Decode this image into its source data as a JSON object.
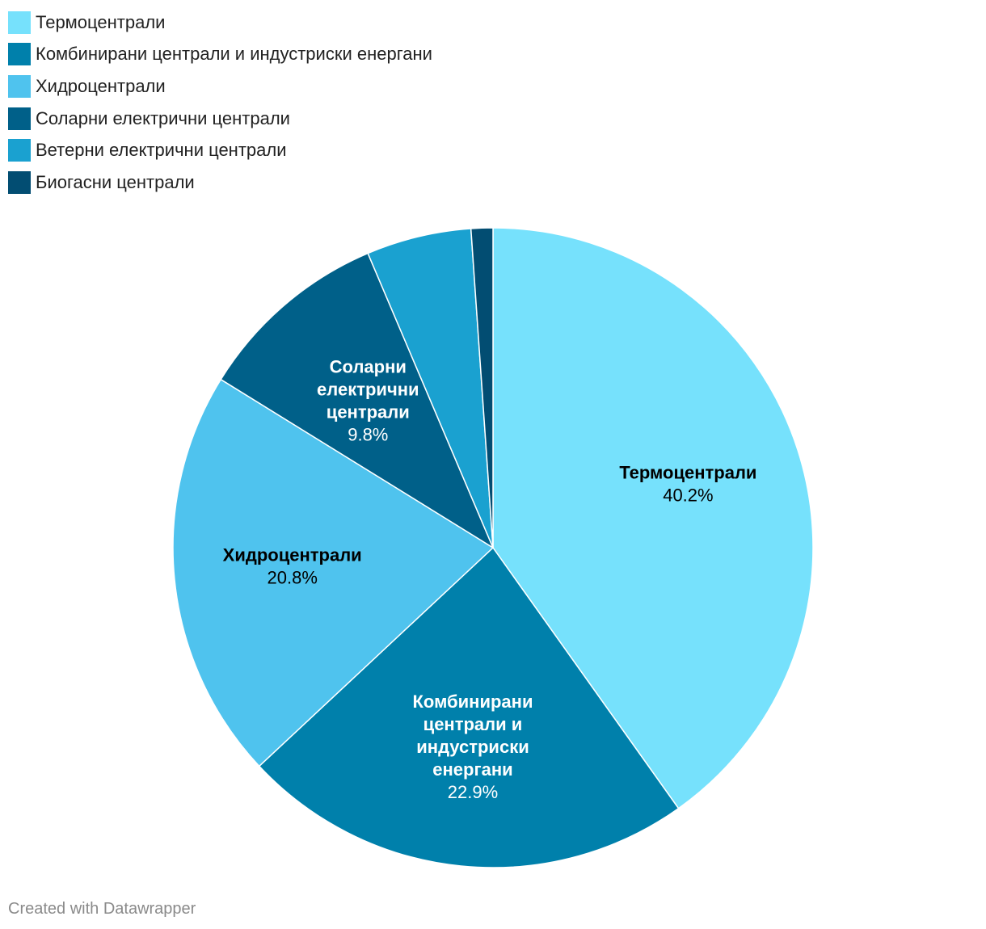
{
  "chart_data": {
    "type": "pie",
    "categories": [
      "Термоцентрали",
      "Комбинирани централи и индустриски енергани",
      "Хидроцентрали",
      "Соларни електрични централи",
      "Ветерни електрични централи",
      "Биогасни централи"
    ],
    "values": [
      40.2,
      22.9,
      20.8,
      9.8,
      5.3,
      1.1
    ],
    "colors": [
      "#76e1fc",
      "#0080ab",
      "#4fc3ee",
      "#006089",
      "#1aa1d0",
      "#024d72"
    ],
    "slice_labels": [
      {
        "lines": [
          "Термоцентрали"
        ],
        "value": "40.2%",
        "text_color": "#000000"
      },
      {
        "lines": [
          "Комбинирани",
          "централи и",
          "индустриски",
          "енергани"
        ],
        "value": "22.9%",
        "text_color": "#ffffff"
      },
      {
        "lines": [
          "Хидроцентрали"
        ],
        "value": "20.8%",
        "text_color": "#000000"
      },
      {
        "lines": [
          "Соларни",
          "електрични",
          "централи"
        ],
        "value": "9.8%",
        "text_color": "#ffffff"
      },
      null,
      null
    ],
    "legend_position": "top-left",
    "start_angle": "12 o'clock",
    "direction": "clockwise"
  },
  "footer": {
    "credit": "Created with Datawrapper"
  }
}
